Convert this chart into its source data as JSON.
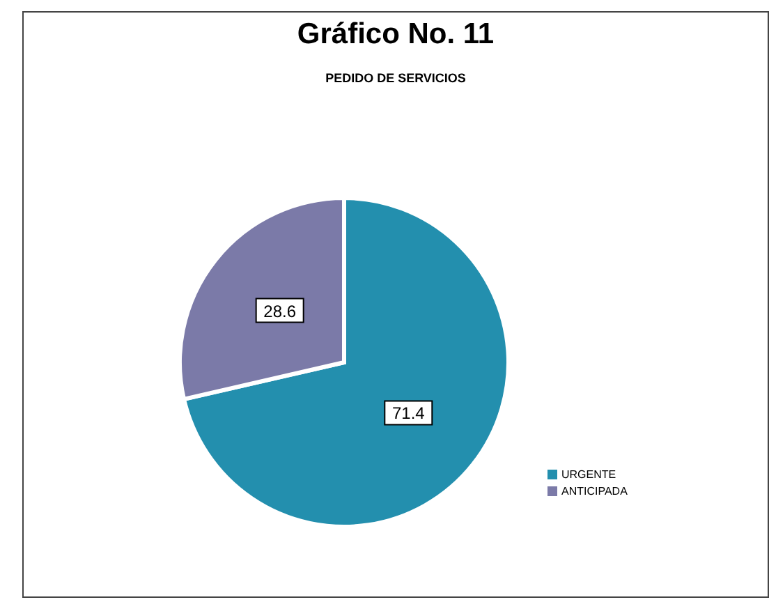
{
  "chart_data": {
    "type": "pie",
    "title": "Gráfico No. 11",
    "subtitle": "PEDIDO DE SERVICIOS",
    "categories": [
      "URGENTE",
      "ANTICIPADA"
    ],
    "values": [
      71.4,
      28.6
    ],
    "colors": [
      "#238fae",
      "#7b7aa8"
    ],
    "data_labels": true,
    "legend": "right"
  }
}
